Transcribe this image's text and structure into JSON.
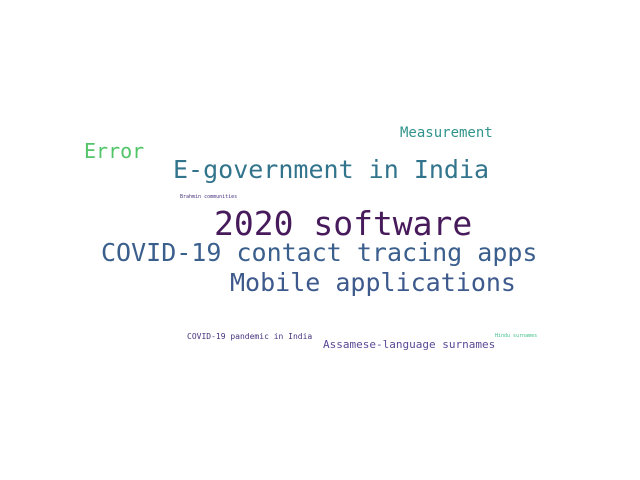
{
  "words": [
    {
      "text": "Measurement",
      "color": "#31948c"
    },
    {
      "text": "Error",
      "color": "#52c569"
    },
    {
      "text": "E-government in India",
      "color": "#33748d"
    },
    {
      "text": "Brahmin communities",
      "color": "#46337e"
    },
    {
      "text": "2020 software",
      "color": "#471a5b"
    },
    {
      "text": "COVID-19 contact tracing apps",
      "color": "#3b5f8d"
    },
    {
      "text": "Mobile applications",
      "color": "#3e5a8c"
    },
    {
      "text": "COVID-19 pandemic in India",
      "color": "#46337e"
    },
    {
      "text": "Assamese-language surnames",
      "color": "#5a4896"
    },
    {
      "text": "Hindu surnames",
      "color": "#3fbf86"
    }
  ]
}
